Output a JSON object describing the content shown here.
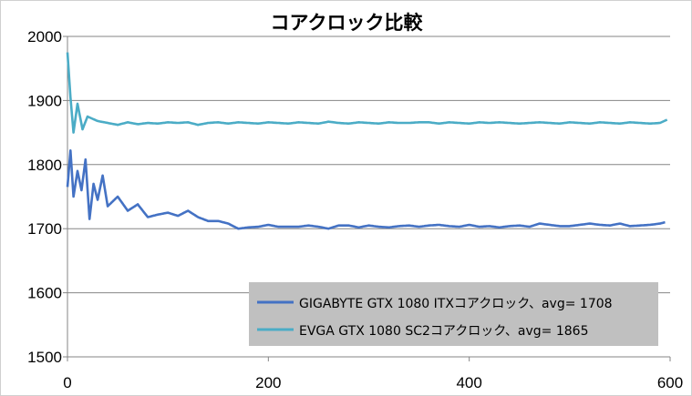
{
  "chart_data": {
    "type": "line",
    "title": "コアクロック比較",
    "xlim": [
      0,
      600
    ],
    "ylim": [
      1500,
      2000
    ],
    "xticks": [
      0,
      200,
      400,
      600
    ],
    "yticks": [
      1500,
      1600,
      1700,
      1800,
      1900,
      2000
    ],
    "grid": "horizontal",
    "legend_position": "bottom-right",
    "series": [
      {
        "name": "GIGABYTE GTX 1080 ITXコアクロック、avg= 1708",
        "color": "#4472c4",
        "points": [
          [
            0,
            1765
          ],
          [
            3,
            1822
          ],
          [
            6,
            1750
          ],
          [
            10,
            1790
          ],
          [
            14,
            1760
          ],
          [
            18,
            1808
          ],
          [
            22,
            1715
          ],
          [
            26,
            1770
          ],
          [
            30,
            1745
          ],
          [
            35,
            1783
          ],
          [
            40,
            1735
          ],
          [
            50,
            1750
          ],
          [
            60,
            1728
          ],
          [
            70,
            1738
          ],
          [
            80,
            1718
          ],
          [
            90,
            1722
          ],
          [
            100,
            1725
          ],
          [
            110,
            1720
          ],
          [
            120,
            1728
          ],
          [
            130,
            1718
          ],
          [
            140,
            1712
          ],
          [
            150,
            1712
          ],
          [
            160,
            1708
          ],
          [
            170,
            1700
          ],
          [
            180,
            1702
          ],
          [
            190,
            1703
          ],
          [
            200,
            1706
          ],
          [
            210,
            1703
          ],
          [
            220,
            1703
          ],
          [
            230,
            1703
          ],
          [
            240,
            1705
          ],
          [
            250,
            1703
          ],
          [
            260,
            1700
          ],
          [
            270,
            1705
          ],
          [
            280,
            1705
          ],
          [
            290,
            1702
          ],
          [
            300,
            1705
          ],
          [
            310,
            1703
          ],
          [
            320,
            1702
          ],
          [
            330,
            1704
          ],
          [
            340,
            1705
          ],
          [
            350,
            1703
          ],
          [
            360,
            1705
          ],
          [
            370,
            1706
          ],
          [
            380,
            1704
          ],
          [
            390,
            1703
          ],
          [
            400,
            1706
          ],
          [
            410,
            1703
          ],
          [
            420,
            1704
          ],
          [
            430,
            1702
          ],
          [
            440,
            1704
          ],
          [
            450,
            1705
          ],
          [
            460,
            1703
          ],
          [
            470,
            1708
          ],
          [
            480,
            1706
          ],
          [
            490,
            1704
          ],
          [
            500,
            1704
          ],
          [
            510,
            1706
          ],
          [
            520,
            1708
          ],
          [
            530,
            1706
          ],
          [
            540,
            1705
          ],
          [
            550,
            1708
          ],
          [
            560,
            1704
          ],
          [
            570,
            1705
          ],
          [
            580,
            1706
          ],
          [
            590,
            1708
          ],
          [
            595,
            1710
          ]
        ]
      },
      {
        "name": "EVGA GTX 1080 SC2コアクロック、avg= 1865",
        "color": "#4bacc6",
        "points": [
          [
            0,
            1975
          ],
          [
            3,
            1905
          ],
          [
            6,
            1850
          ],
          [
            10,
            1895
          ],
          [
            15,
            1855
          ],
          [
            20,
            1875
          ],
          [
            30,
            1868
          ],
          [
            40,
            1865
          ],
          [
            50,
            1862
          ],
          [
            60,
            1866
          ],
          [
            70,
            1863
          ],
          [
            80,
            1865
          ],
          [
            90,
            1864
          ],
          [
            100,
            1866
          ],
          [
            110,
            1865
          ],
          [
            120,
            1866
          ],
          [
            130,
            1862
          ],
          [
            140,
            1865
          ],
          [
            150,
            1866
          ],
          [
            160,
            1864
          ],
          [
            170,
            1866
          ],
          [
            180,
            1865
          ],
          [
            190,
            1864
          ],
          [
            200,
            1866
          ],
          [
            210,
            1865
          ],
          [
            220,
            1864
          ],
          [
            230,
            1866
          ],
          [
            240,
            1865
          ],
          [
            250,
            1864
          ],
          [
            260,
            1867
          ],
          [
            270,
            1865
          ],
          [
            280,
            1864
          ],
          [
            290,
            1866
          ],
          [
            300,
            1865
          ],
          [
            310,
            1864
          ],
          [
            320,
            1866
          ],
          [
            330,
            1865
          ],
          [
            340,
            1865
          ],
          [
            350,
            1866
          ],
          [
            360,
            1866
          ],
          [
            370,
            1864
          ],
          [
            380,
            1866
          ],
          [
            390,
            1865
          ],
          [
            400,
            1864
          ],
          [
            410,
            1866
          ],
          [
            420,
            1865
          ],
          [
            430,
            1866
          ],
          [
            440,
            1865
          ],
          [
            450,
            1864
          ],
          [
            460,
            1865
          ],
          [
            470,
            1866
          ],
          [
            480,
            1865
          ],
          [
            490,
            1864
          ],
          [
            500,
            1866
          ],
          [
            510,
            1865
          ],
          [
            520,
            1864
          ],
          [
            530,
            1866
          ],
          [
            540,
            1865
          ],
          [
            550,
            1864
          ],
          [
            560,
            1866
          ],
          [
            570,
            1865
          ],
          [
            580,
            1864
          ],
          [
            590,
            1865
          ],
          [
            597,
            1870
          ]
        ]
      }
    ]
  }
}
